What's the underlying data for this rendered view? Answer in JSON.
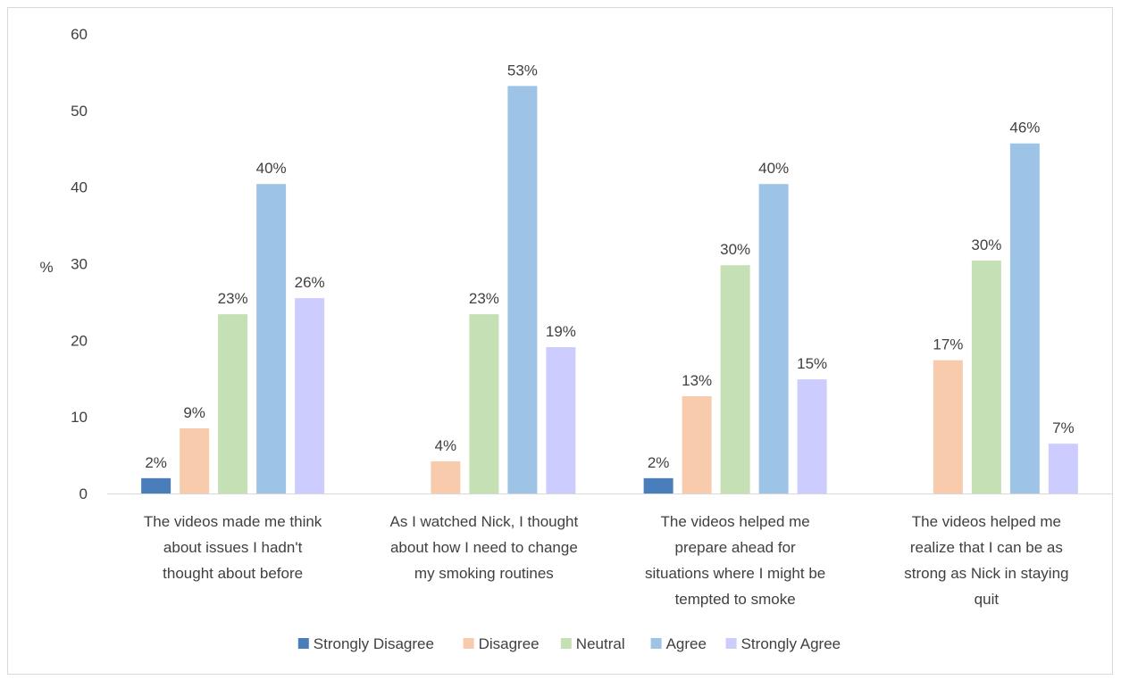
{
  "chart_data": {
    "type": "bar",
    "ylabel": "%",
    "ylim": [
      0,
      60
    ],
    "yticks": [
      0,
      10,
      20,
      30,
      40,
      50,
      60
    ],
    "grid": false,
    "legend": "bottom",
    "categories": [
      [
        "The videos made me think",
        "about issues I hadn't",
        "thought about before"
      ],
      [
        "As I watched Nick, I thought",
        "about how I need to change",
        "my smoking routines"
      ],
      [
        "The videos helped me",
        "prepare ahead for",
        "situations where I might be",
        "tempted to smoke"
      ],
      [
        "The videos helped me",
        "realize that I can be as",
        "strong as Nick in staying",
        "quit"
      ]
    ],
    "series": [
      {
        "name": "Strongly Disagree",
        "color": "#4a7ebb",
        "values": [
          2,
          null,
          2,
          null
        ],
        "labels": [
          "2%",
          "",
          "2%",
          ""
        ]
      },
      {
        "name": "Disagree",
        "color": "#f8cbad",
        "values": [
          8.5,
          4.2,
          12.7,
          17.4
        ],
        "labels": [
          "9%",
          "4%",
          "13%",
          "17%"
        ]
      },
      {
        "name": "Neutral",
        "color": "#c5e0b4",
        "values": [
          23.4,
          23.4,
          29.8,
          30.4
        ],
        "labels": [
          "23%",
          "23%",
          "30%",
          "30%"
        ]
      },
      {
        "name": "Agree",
        "color": "#9dc3e6",
        "values": [
          40.4,
          53.2,
          40.4,
          45.7
        ],
        "labels": [
          "40%",
          "53%",
          "40%",
          "46%"
        ]
      },
      {
        "name": "Strongly Agree",
        "color": "#ccccff",
        "values": [
          25.5,
          19.1,
          14.9,
          6.5
        ],
        "labels": [
          "26%",
          "19%",
          "15%",
          "7%"
        ]
      }
    ]
  }
}
